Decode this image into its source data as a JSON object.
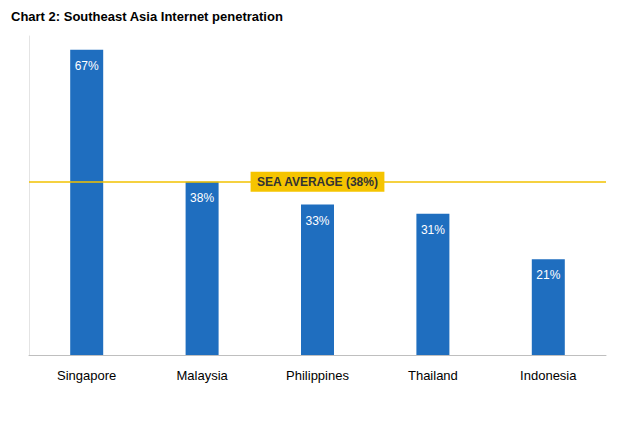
{
  "chart_data": {
    "type": "bar",
    "title": "Chart 2: Southeast Asia Internet penetration",
    "categories": [
      "Singapore",
      "Malaysia",
      "Philippines",
      "Thailand",
      "Indonesia"
    ],
    "values": [
      67,
      38,
      33,
      31,
      21
    ],
    "value_labels": [
      "67%",
      "38%",
      "33%",
      "31%",
      "21%"
    ],
    "color": "#1f6ebf",
    "ylim": [
      0,
      70
    ],
    "yticks": [],
    "grid": false,
    "data_labels": true,
    "tick_labels": "x",
    "average": {
      "value": 38,
      "label": "SEA AVERAGE (38%)"
    }
  }
}
